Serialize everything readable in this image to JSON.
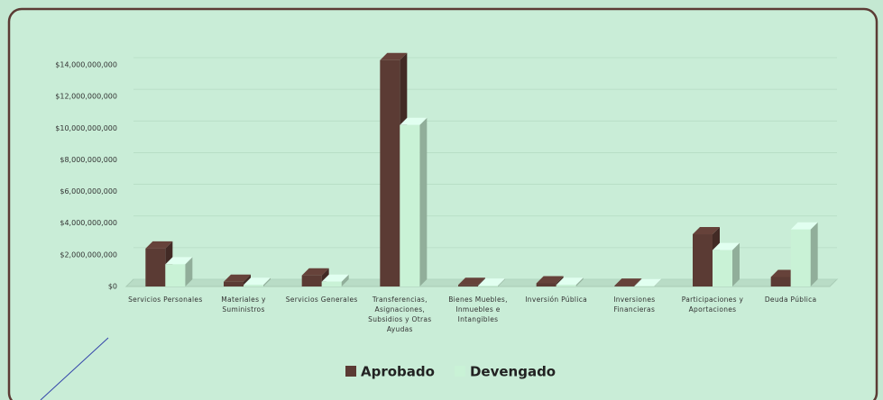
{
  "chart_data": {
    "type": "bar3d",
    "categories": [
      "Servicios Personales",
      "Materiales y Suministros",
      "Servicios Generales",
      "Transferencias, Asignaciones, Subsidios y Otras Ayudas",
      "Bienes Muebles, Inmuebles e Intangibles",
      "Inversión Pública",
      "Inversiones Financieras",
      "Participaciones y Aportaciones",
      "Deuda Pública"
    ],
    "series": [
      {
        "name": "Aprobado",
        "color": "#5b3b34",
        "values": [
          2400000000,
          300000000,
          700000000,
          14300000000,
          100000000,
          200000000,
          50000000,
          3300000000,
          600000000
        ]
      },
      {
        "name": "Devengado",
        "color": "#c9f2d6",
        "values": [
          1400000000,
          100000000,
          300000000,
          10200000000,
          50000000,
          100000000,
          20000000,
          2300000000,
          3600000000
        ]
      }
    ],
    "ylim": [
      0,
      14000000000
    ],
    "yticks": [
      {
        "value": 0,
        "label": "$0"
      },
      {
        "value": 2000000000,
        "label": "$2,000,000,000"
      },
      {
        "value": 4000000000,
        "label": "$4,000,000,000"
      },
      {
        "value": 6000000000,
        "label": "$6,000,000,000"
      },
      {
        "value": 8000000000,
        "label": "$8,000,000,000"
      },
      {
        "value": 10000000000,
        "label": "$10,000,000,000"
      },
      {
        "value": 12000000000,
        "label": "$12,000,000,000"
      },
      {
        "value": 14000000000,
        "label": "$14,000,000,000"
      }
    ],
    "grid": true,
    "legend": "bottom"
  }
}
